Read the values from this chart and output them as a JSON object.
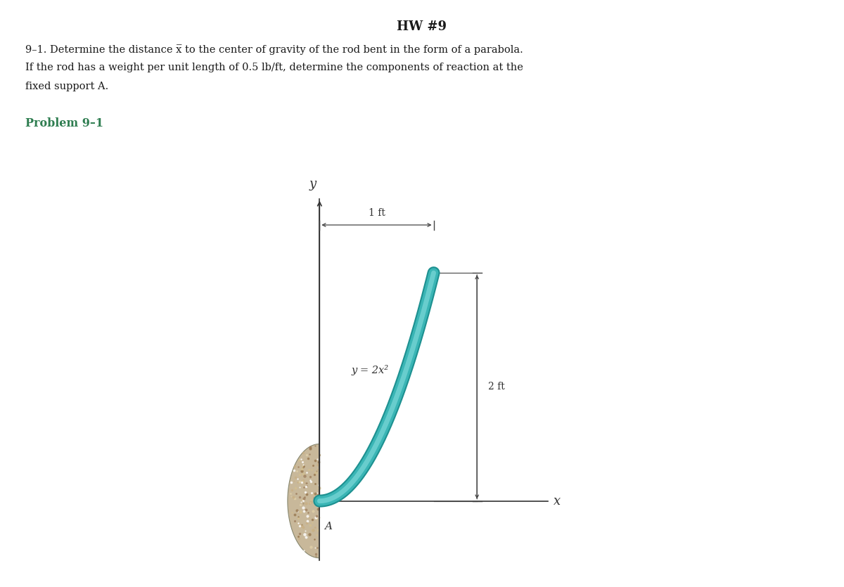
{
  "title": "HW #9",
  "title_fontsize": 13,
  "problem_text_line1": "9–1. Determine the distance x̅ to the center of gravity of the rod bent in the form of a parabola.",
  "problem_text_line2": "If the rod has a weight per unit length of 0.5 lb/ft, determine the components of reaction at the",
  "problem_text_line3": "fixed support A.",
  "problem_label": "Problem 9–1",
  "equation_label": "y = 2x²",
  "dim_horizontal": "1 ft",
  "dim_vertical": "2 ft",
  "axis_label_x": "x",
  "axis_label_y": "y",
  "point_label_A": "A",
  "curve_color_outer": "#1d9090",
  "curve_color_main": "#3ab5b5",
  "curve_color_highlight": "#7dd8d8",
  "curve_linewidth_outer": 13,
  "curve_linewidth_main": 10,
  "curve_linewidth_highlight": 5,
  "background_color": "#ffffff",
  "text_color": "#1a1a1a",
  "problem_label_color": "#2e7d50",
  "wall_face_color": "#c8b89a",
  "wall_speckle_colors": [
    "#b09878",
    "#d4c4a0",
    "#e8dcc0",
    "#a08060"
  ]
}
